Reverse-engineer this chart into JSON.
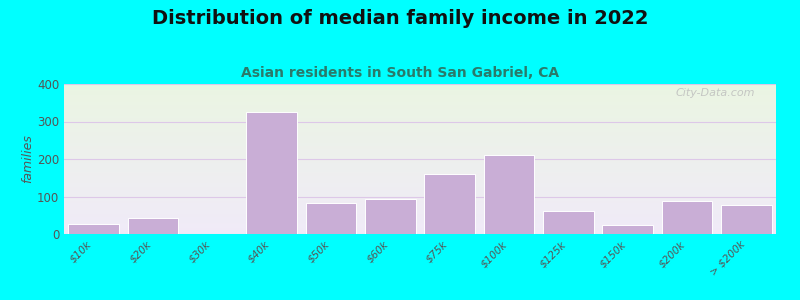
{
  "title": "Distribution of median family income in 2022",
  "subtitle": "Asian residents in South San Gabriel, CA",
  "ylabel": "families",
  "categories": [
    "$10k",
    "$20k",
    "$30k",
    "$40k",
    "$50k",
    "$60k",
    "$75k",
    "$100k",
    "$125k",
    "$150k",
    "$200k",
    "> $200k"
  ],
  "values": [
    28,
    42,
    0,
    325,
    83,
    93,
    160,
    212,
    62,
    25,
    87,
    78
  ],
  "bar_color": "#c9aed6",
  "bar_edge_color": "#ffffff",
  "background_outer": "#00ffff",
  "ylim": [
    0,
    400
  ],
  "yticks": [
    0,
    100,
    200,
    300,
    400
  ],
  "title_fontsize": 14,
  "subtitle_fontsize": 10,
  "ylabel_fontsize": 9,
  "watermark": "City-Data.com",
  "grid_color": "#ddc8e8",
  "subtitle_color": "#2a7a6a"
}
